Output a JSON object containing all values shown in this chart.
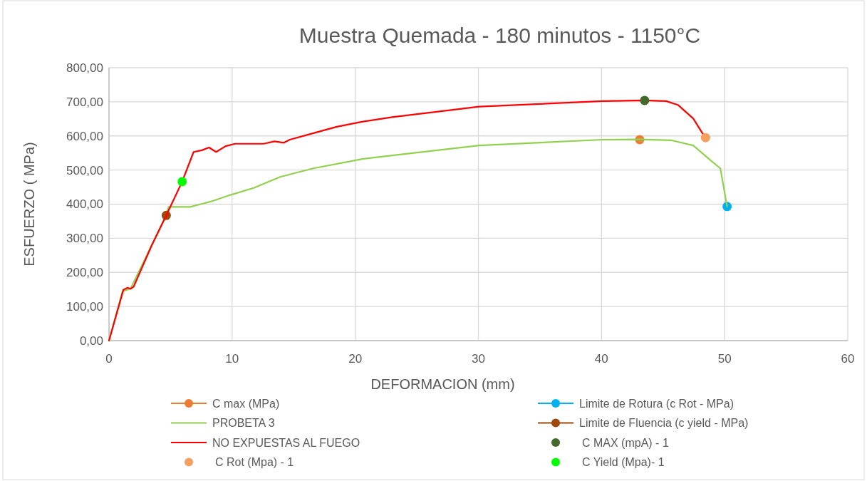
{
  "chart_data": {
    "type": "line",
    "title": "Muestra Quemada - 180 minutos - 1150°C",
    "xlabel": "DEFORMACION (mm)",
    "ylabel": "ESFUERZO ( MPa)",
    "xlim": [
      0,
      60
    ],
    "xticks": [
      0,
      10,
      20,
      30,
      40,
      50,
      60
    ],
    "ylim": [
      0,
      800
    ],
    "yticks": [
      {
        "value": 0,
        "label": "0,00"
      },
      {
        "value": 100,
        "label": "100,00"
      },
      {
        "value": 200,
        "label": "200,00"
      },
      {
        "value": 300,
        "label": "300,00"
      },
      {
        "value": 400,
        "label": "400,00"
      },
      {
        "value": 500,
        "label": "500,00"
      },
      {
        "value": 600,
        "label": "600,00"
      },
      {
        "value": 700,
        "label": "700,00"
      },
      {
        "value": 800,
        "label": "800,00"
      }
    ],
    "grid": true,
    "legend": "bottom",
    "series": [
      {
        "name": "C max (MPa)",
        "marker": "circle",
        "color": "#ed7d31",
        "x": [
          43.1
        ],
        "values": [
          589
        ]
      },
      {
        "name": "Limite de Rotura (c Rot - MPa)",
        "marker": "circle",
        "color": "#00b0f0",
        "x": [
          50.2
        ],
        "values": [
          393
        ]
      },
      {
        "name": "PROBETA 3",
        "marker": "none",
        "color": "#92d050",
        "x": [
          0,
          1.1,
          1.75,
          3.49,
          4.65,
          4.84,
          6.58,
          7.35,
          8.3,
          9.86,
          11.79,
          13.9,
          16.6,
          20.5,
          23,
          30.07,
          40.1,
          43,
          45.7,
          47.45,
          48.9,
          49.65,
          50.2
        ],
        "values": [
          0,
          145,
          152,
          281,
          367,
          392,
          392,
          399,
          408,
          427,
          448,
          480,
          505,
          532,
          543,
          572,
          589,
          590,
          587,
          572,
          527,
          505,
          393
        ]
      },
      {
        "name": "Limite de Fluencia (c yield - MPa)",
        "marker": "circle",
        "color": "#9e480e",
        "x": [
          4.65
        ],
        "values": [
          367
        ]
      },
      {
        "name": "NO EXPUESTAS AL FUEGO",
        "marker": "none",
        "color": "#ff0000",
        "x": [
          0,
          1.17,
          1.5,
          1.75,
          2,
          3.49,
          4.65,
          5.94,
          6.87,
          7.54,
          8.12,
          8.7,
          9.47,
          10.24,
          12.56,
          13.43,
          14.2,
          14.68,
          16.6,
          18.5,
          20.47,
          23,
          30.07,
          40.1,
          43.5,
          45.25,
          46.2,
          47.45,
          48.3
        ],
        "values": [
          0,
          149,
          155,
          152,
          158,
          281,
          367,
          466,
          553,
          558,
          566,
          553,
          570,
          577,
          577,
          584,
          580,
          589,
          608,
          627,
          641,
          655,
          686,
          702,
          704,
          702,
          691,
          651,
          602
        ]
      },
      {
        "name": "C MAX (mpA) - 1",
        "type": "scatter",
        "marker": "circle",
        "color": "#43682b",
        "x": [
          43.5
        ],
        "values": [
          704
        ]
      },
      {
        "name": "C Rot (Mpa) - 1",
        "type": "scatter",
        "marker": "circle",
        "color": "#f4a15f",
        "x": [
          48.45
        ],
        "values": [
          595
        ]
      },
      {
        "name": "C Yield (Mpa)- 1",
        "type": "scatter",
        "marker": "circle",
        "color": "#00ff00",
        "x": [
          5.94
        ],
        "values": [
          466
        ]
      }
    ]
  }
}
